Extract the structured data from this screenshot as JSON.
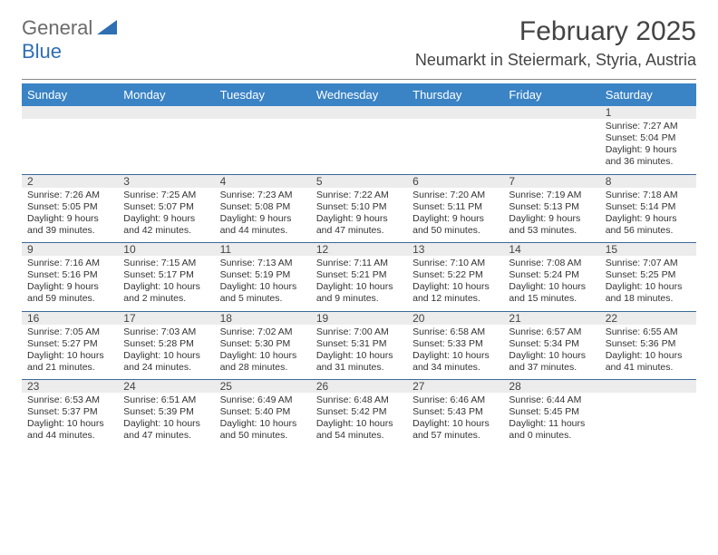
{
  "brand": {
    "part1": "General",
    "part2": "Blue"
  },
  "title": "February 2025",
  "location": "Neumarkt in Steiermark, Styria, Austria",
  "colors": {
    "header_bg": "#3a83c5",
    "header_text": "#ffffff",
    "stripe_bg": "#ececec",
    "divider": "#3a6a9a",
    "text": "#333333",
    "brand_gray": "#6b6b6b",
    "brand_blue": "#2f6fb3"
  },
  "day_headers": [
    "Sunday",
    "Monday",
    "Tuesday",
    "Wednesday",
    "Thursday",
    "Friday",
    "Saturday"
  ],
  "weeks": [
    [
      {
        "day": ""
      },
      {
        "day": ""
      },
      {
        "day": ""
      },
      {
        "day": ""
      },
      {
        "day": ""
      },
      {
        "day": ""
      },
      {
        "day": "1",
        "sunrise": "Sunrise: 7:27 AM",
        "sunset": "Sunset: 5:04 PM",
        "d1": "Daylight: 9 hours",
        "d2": "and 36 minutes."
      }
    ],
    [
      {
        "day": "2",
        "sunrise": "Sunrise: 7:26 AM",
        "sunset": "Sunset: 5:05 PM",
        "d1": "Daylight: 9 hours",
        "d2": "and 39 minutes."
      },
      {
        "day": "3",
        "sunrise": "Sunrise: 7:25 AM",
        "sunset": "Sunset: 5:07 PM",
        "d1": "Daylight: 9 hours",
        "d2": "and 42 minutes."
      },
      {
        "day": "4",
        "sunrise": "Sunrise: 7:23 AM",
        "sunset": "Sunset: 5:08 PM",
        "d1": "Daylight: 9 hours",
        "d2": "and 44 minutes."
      },
      {
        "day": "5",
        "sunrise": "Sunrise: 7:22 AM",
        "sunset": "Sunset: 5:10 PM",
        "d1": "Daylight: 9 hours",
        "d2": "and 47 minutes."
      },
      {
        "day": "6",
        "sunrise": "Sunrise: 7:20 AM",
        "sunset": "Sunset: 5:11 PM",
        "d1": "Daylight: 9 hours",
        "d2": "and 50 minutes."
      },
      {
        "day": "7",
        "sunrise": "Sunrise: 7:19 AM",
        "sunset": "Sunset: 5:13 PM",
        "d1": "Daylight: 9 hours",
        "d2": "and 53 minutes."
      },
      {
        "day": "8",
        "sunrise": "Sunrise: 7:18 AM",
        "sunset": "Sunset: 5:14 PM",
        "d1": "Daylight: 9 hours",
        "d2": "and 56 minutes."
      }
    ],
    [
      {
        "day": "9",
        "sunrise": "Sunrise: 7:16 AM",
        "sunset": "Sunset: 5:16 PM",
        "d1": "Daylight: 9 hours",
        "d2": "and 59 minutes."
      },
      {
        "day": "10",
        "sunrise": "Sunrise: 7:15 AM",
        "sunset": "Sunset: 5:17 PM",
        "d1": "Daylight: 10 hours",
        "d2": "and 2 minutes."
      },
      {
        "day": "11",
        "sunrise": "Sunrise: 7:13 AM",
        "sunset": "Sunset: 5:19 PM",
        "d1": "Daylight: 10 hours",
        "d2": "and 5 minutes."
      },
      {
        "day": "12",
        "sunrise": "Sunrise: 7:11 AM",
        "sunset": "Sunset: 5:21 PM",
        "d1": "Daylight: 10 hours",
        "d2": "and 9 minutes."
      },
      {
        "day": "13",
        "sunrise": "Sunrise: 7:10 AM",
        "sunset": "Sunset: 5:22 PM",
        "d1": "Daylight: 10 hours",
        "d2": "and 12 minutes."
      },
      {
        "day": "14",
        "sunrise": "Sunrise: 7:08 AM",
        "sunset": "Sunset: 5:24 PM",
        "d1": "Daylight: 10 hours",
        "d2": "and 15 minutes."
      },
      {
        "day": "15",
        "sunrise": "Sunrise: 7:07 AM",
        "sunset": "Sunset: 5:25 PM",
        "d1": "Daylight: 10 hours",
        "d2": "and 18 minutes."
      }
    ],
    [
      {
        "day": "16",
        "sunrise": "Sunrise: 7:05 AM",
        "sunset": "Sunset: 5:27 PM",
        "d1": "Daylight: 10 hours",
        "d2": "and 21 minutes."
      },
      {
        "day": "17",
        "sunrise": "Sunrise: 7:03 AM",
        "sunset": "Sunset: 5:28 PM",
        "d1": "Daylight: 10 hours",
        "d2": "and 24 minutes."
      },
      {
        "day": "18",
        "sunrise": "Sunrise: 7:02 AM",
        "sunset": "Sunset: 5:30 PM",
        "d1": "Daylight: 10 hours",
        "d2": "and 28 minutes."
      },
      {
        "day": "19",
        "sunrise": "Sunrise: 7:00 AM",
        "sunset": "Sunset: 5:31 PM",
        "d1": "Daylight: 10 hours",
        "d2": "and 31 minutes."
      },
      {
        "day": "20",
        "sunrise": "Sunrise: 6:58 AM",
        "sunset": "Sunset: 5:33 PM",
        "d1": "Daylight: 10 hours",
        "d2": "and 34 minutes."
      },
      {
        "day": "21",
        "sunrise": "Sunrise: 6:57 AM",
        "sunset": "Sunset: 5:34 PM",
        "d1": "Daylight: 10 hours",
        "d2": "and 37 minutes."
      },
      {
        "day": "22",
        "sunrise": "Sunrise: 6:55 AM",
        "sunset": "Sunset: 5:36 PM",
        "d1": "Daylight: 10 hours",
        "d2": "and 41 minutes."
      }
    ],
    [
      {
        "day": "23",
        "sunrise": "Sunrise: 6:53 AM",
        "sunset": "Sunset: 5:37 PM",
        "d1": "Daylight: 10 hours",
        "d2": "and 44 minutes."
      },
      {
        "day": "24",
        "sunrise": "Sunrise: 6:51 AM",
        "sunset": "Sunset: 5:39 PM",
        "d1": "Daylight: 10 hours",
        "d2": "and 47 minutes."
      },
      {
        "day": "25",
        "sunrise": "Sunrise: 6:49 AM",
        "sunset": "Sunset: 5:40 PM",
        "d1": "Daylight: 10 hours",
        "d2": "and 50 minutes."
      },
      {
        "day": "26",
        "sunrise": "Sunrise: 6:48 AM",
        "sunset": "Sunset: 5:42 PM",
        "d1": "Daylight: 10 hours",
        "d2": "and 54 minutes."
      },
      {
        "day": "27",
        "sunrise": "Sunrise: 6:46 AM",
        "sunset": "Sunset: 5:43 PM",
        "d1": "Daylight: 10 hours",
        "d2": "and 57 minutes."
      },
      {
        "day": "28",
        "sunrise": "Sunrise: 6:44 AM",
        "sunset": "Sunset: 5:45 PM",
        "d1": "Daylight: 11 hours",
        "d2": "and 0 minutes."
      },
      {
        "day": ""
      }
    ]
  ]
}
